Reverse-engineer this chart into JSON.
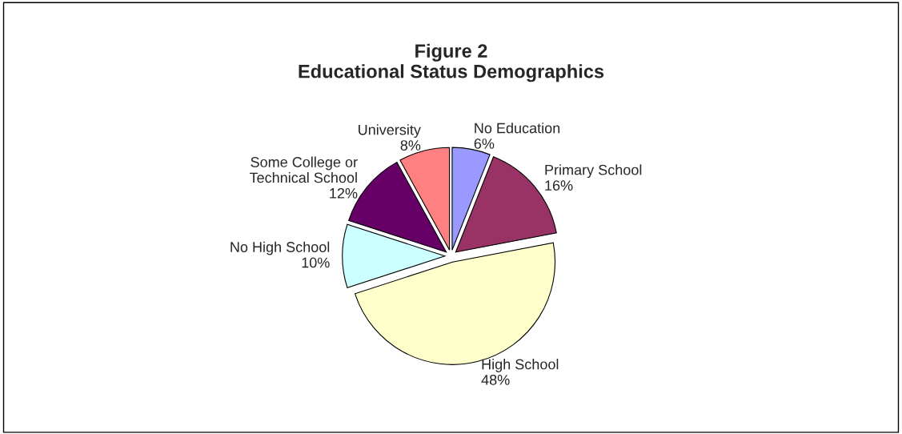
{
  "chart_data": {
    "type": "pie",
    "title": "Figure 2\nEducational Status Demographics",
    "categories": [
      "No Education",
      "Primary School",
      "High School",
      "No High School",
      "Some College or\nTechnical School",
      "University"
    ],
    "values": [
      6,
      16,
      48,
      10,
      12,
      8
    ],
    "value_labels": [
      "6%",
      "16%",
      "48%",
      "10%",
      "12%",
      "8%"
    ],
    "colors": [
      "#9999ff",
      "#993366",
      "#ffffcc",
      "#ccffff",
      "#660066",
      "#ff8080"
    ],
    "legend": false
  }
}
